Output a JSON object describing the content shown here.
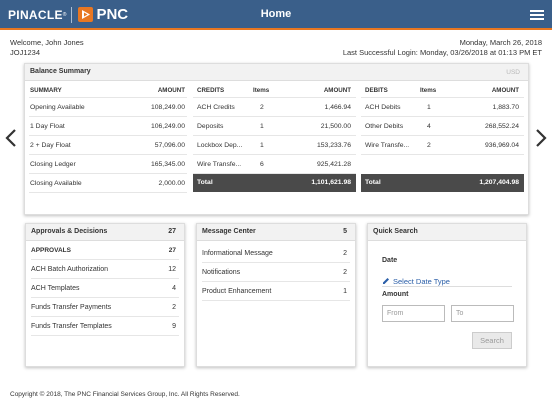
{
  "header": {
    "brand_name": "PINACLE",
    "brand_mark": "®",
    "bank_name": "PNC",
    "title": "Home"
  },
  "user": {
    "welcome": "Welcome, John Jones",
    "user_id": "JOJ1234",
    "date": "Monday, March 26, 2018",
    "last_login": "Last Successful Login: Monday, 03/26/2018 at 01:13 PM ET"
  },
  "balance_summary": {
    "title": "Balance Summary",
    "currency": "USD",
    "summary": {
      "headers": [
        "SUMMARY",
        "AMOUNT"
      ],
      "rows": [
        {
          "label": "Opening Available",
          "amount": "108,249.00"
        },
        {
          "label": "1 Day Float",
          "amount": "106,249.00"
        },
        {
          "label": "2 + Day Float",
          "amount": "57,096.00"
        },
        {
          "label": "Closing Ledger",
          "amount": "165,345.00"
        },
        {
          "label": "Closing Available",
          "amount": "2,000.00"
        }
      ]
    },
    "credits": {
      "headers": [
        "CREDITS",
        "Items",
        "AMOUNT"
      ],
      "rows": [
        {
          "label": "ACH Credits",
          "items": "2",
          "amount": "1,466.94"
        },
        {
          "label": "Deposits",
          "items": "1",
          "amount": "21,500.00"
        },
        {
          "label": "Lockbox Dep...",
          "items": "1",
          "amount": "153,233.76"
        },
        {
          "label": "Wire Transfe...",
          "items": "6",
          "amount": "925,421.28"
        }
      ],
      "total_label": "Total",
      "total": "1,101,621.98"
    },
    "debits": {
      "headers": [
        "DEBITS",
        "Items",
        "AMOUNT"
      ],
      "rows": [
        {
          "label": "ACH Debits",
          "items": "1",
          "amount": "1,883.70"
        },
        {
          "label": "Other Debits",
          "items": "4",
          "amount": "268,552.24"
        },
        {
          "label": "Wire Transfe...",
          "items": "2",
          "amount": "936,969.04"
        }
      ],
      "total_label": "Total",
      "total": "1,207,404.98"
    }
  },
  "approvals": {
    "title": "Approvals & Decisions",
    "count": "27",
    "sub_label": "APPROVALS",
    "sub_count": "27",
    "rows": [
      {
        "label": "ACH Batch Authorization",
        "count": "12"
      },
      {
        "label": "ACH Templates",
        "count": "4"
      },
      {
        "label": "Funds Transfer Payments",
        "count": "2"
      },
      {
        "label": "Funds Transfer Templates",
        "count": "9"
      }
    ]
  },
  "messages": {
    "title": "Message Center",
    "count": "5",
    "rows": [
      {
        "label": "Informational Message",
        "count": "2"
      },
      {
        "label": "Notifications",
        "count": "2"
      },
      {
        "label": "Product Enhancement",
        "count": "1"
      }
    ]
  },
  "quick_search": {
    "title": "Quick Search",
    "date_label": "Date",
    "date_link": "Select Date Type",
    "amount_label": "Amount",
    "from_placeholder": "From",
    "to_placeholder": "To",
    "search_label": "Search"
  },
  "footer": {
    "copyright": "Copyright © 2018, The PNC Financial Services Group, Inc. All Rights Reserved."
  },
  "colors": {
    "header_bg": "#3a5f8a",
    "accent": "#e87722",
    "link": "#2a5ea8",
    "total_bg": "#4a4a4a"
  }
}
